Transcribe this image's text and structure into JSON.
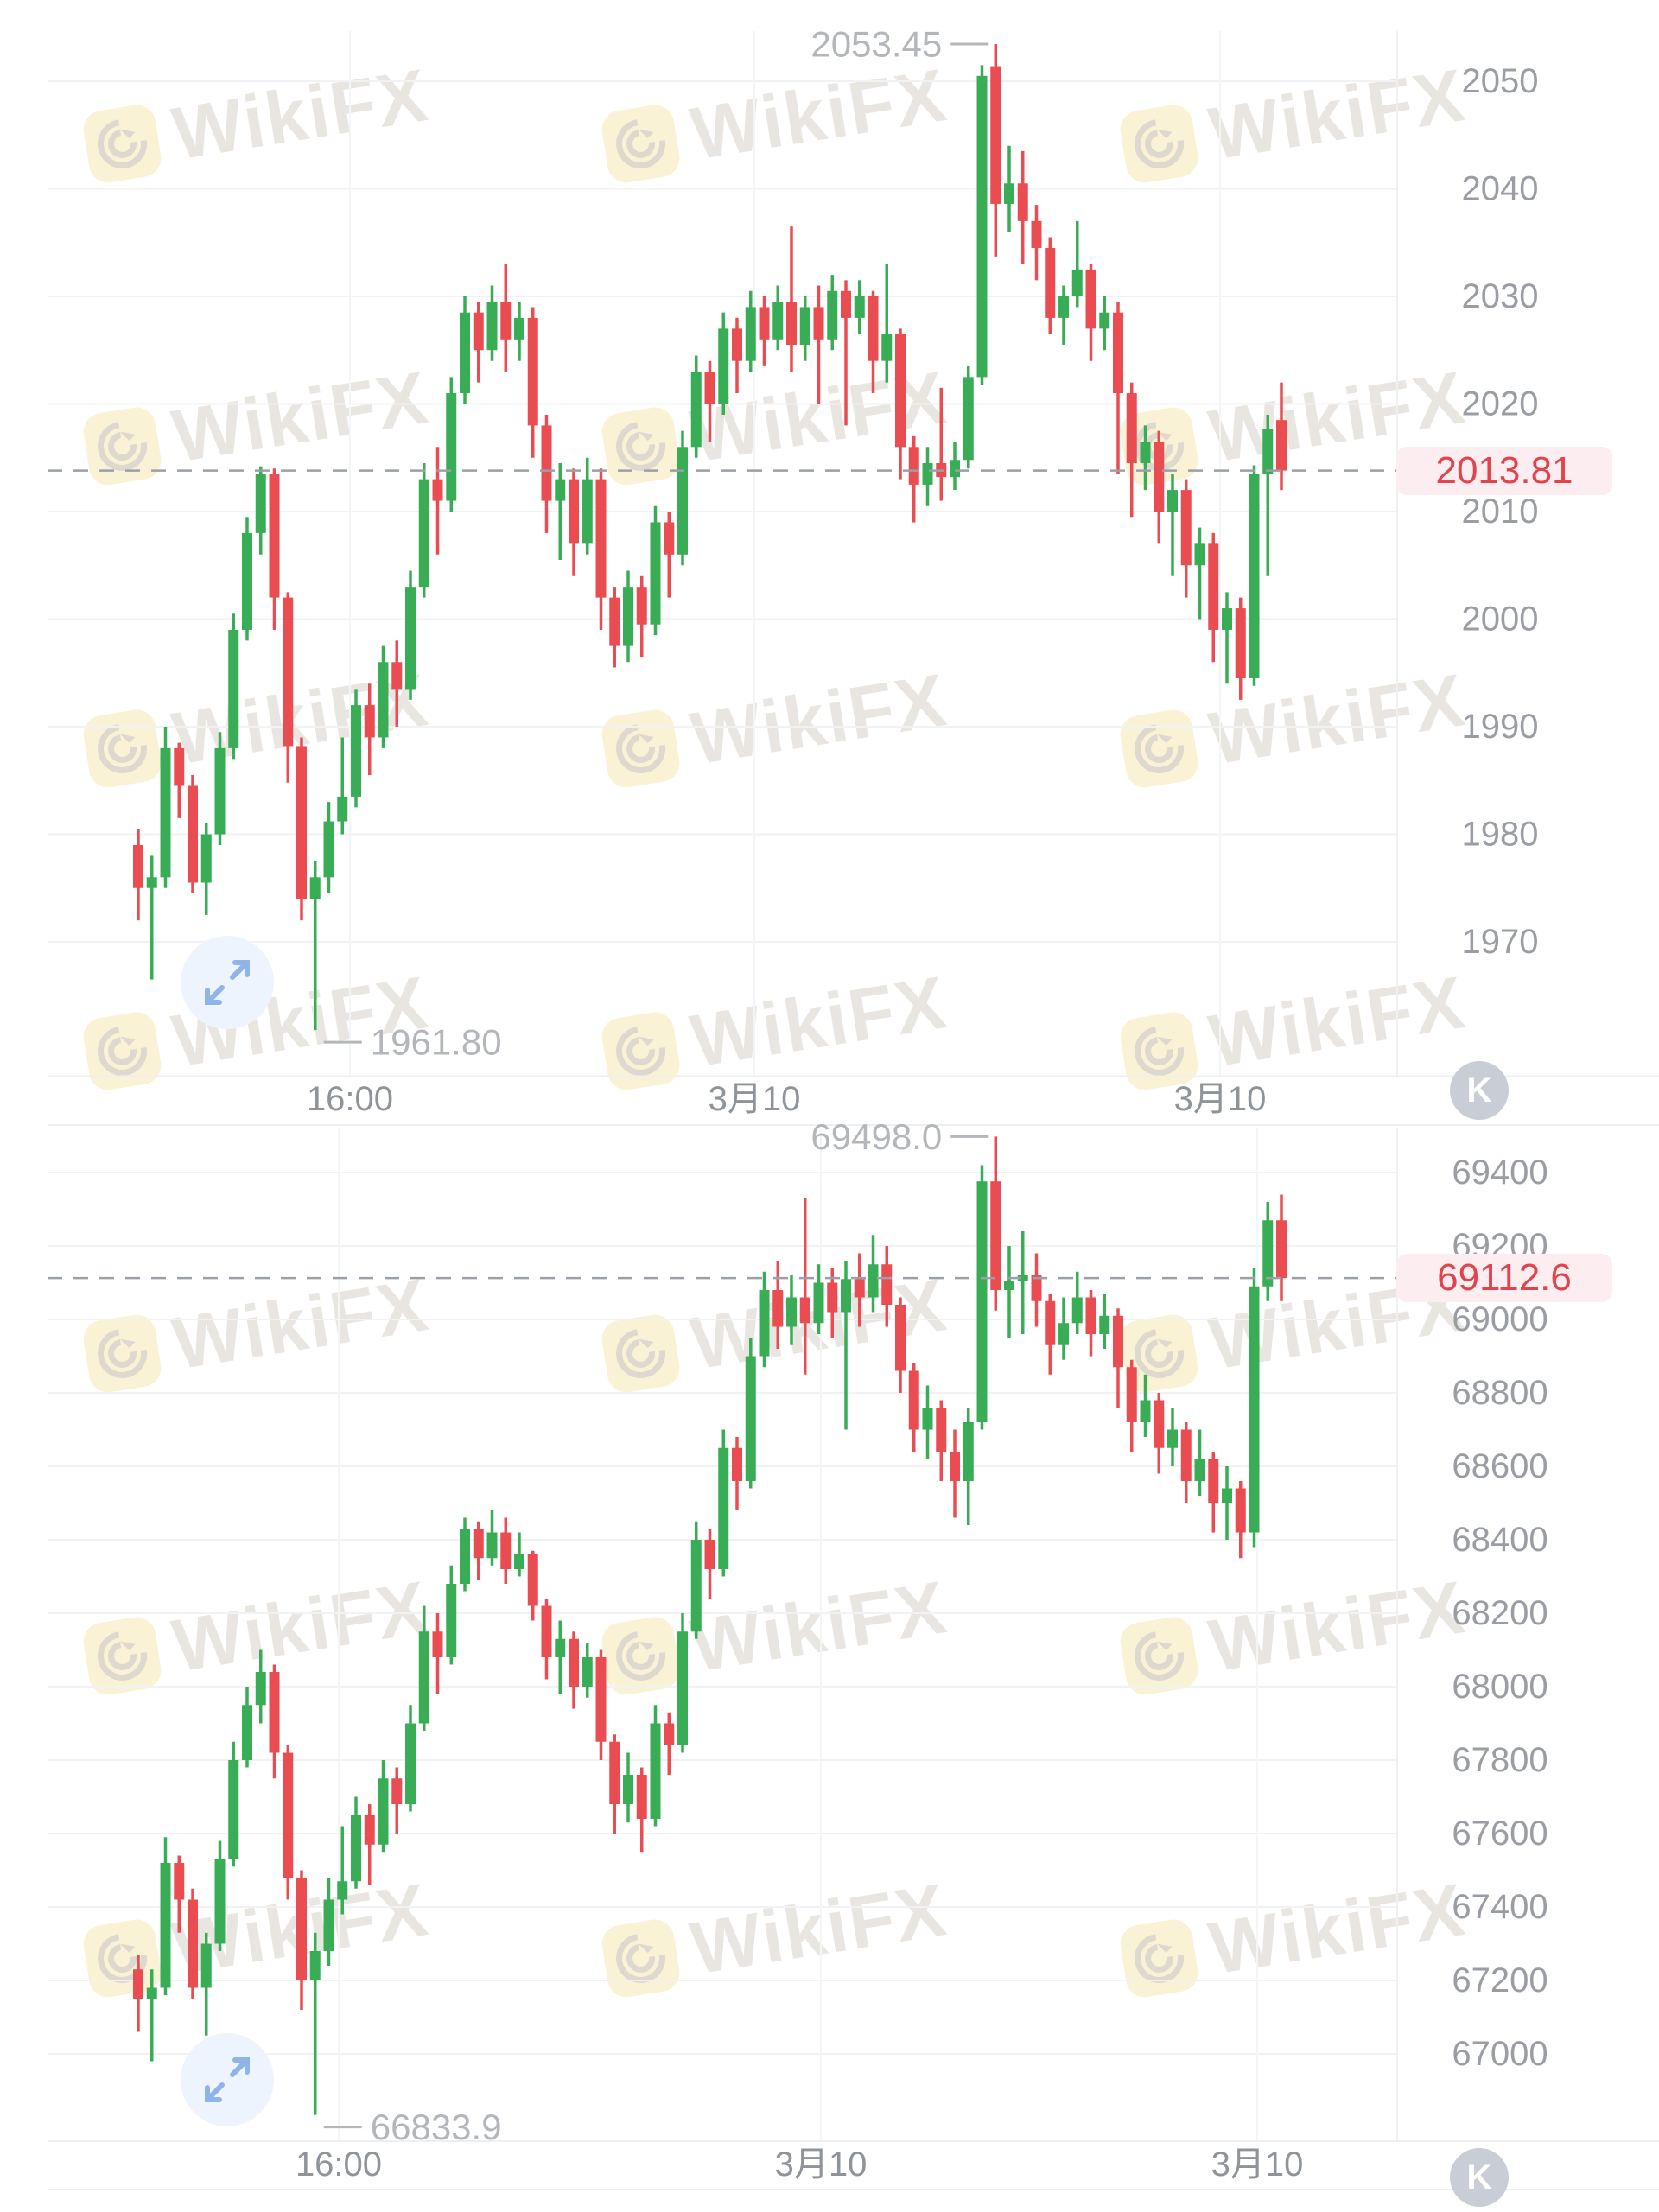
{
  "watermark": {
    "text": "WikiFX",
    "logo_icon": "wikifx-eagle-logo"
  },
  "interval_badge_label": "K",
  "colors": {
    "up": "#38ad56",
    "down": "#ea4d51",
    "current_price_text": "#e2444d",
    "current_price_bg": "#fceef0",
    "axis_text": "#9a9ea4",
    "marker_text": "#b3b6bb",
    "dashed_line": "#9aa0a6",
    "grid_line": "#f1f2f4",
    "fab_bg": "#eef4fd",
    "fab_arrow": "#8fb4ea",
    "k_badge_bg": "#c9ced6"
  },
  "chart_data": [
    {
      "type": "candlestick",
      "grid": true,
      "legend_position": "none",
      "y_ticks": [
        2050,
        2040,
        2030,
        2020,
        2010,
        2000,
        1990,
        1980,
        1970
      ],
      "ylim": [
        1961.8,
        2053.45
      ],
      "x_labels": [
        {
          "label": "16:00",
          "x": 405
        },
        {
          "label": "3月10",
          "x": 873
        },
        {
          "label": "3月10",
          "x": 1412
        }
      ],
      "high_marker": {
        "label": "2053.45",
        "value": 2053.45,
        "candle_index": 63
      },
      "low_marker": {
        "label": "1961.80",
        "value": 1961.8,
        "candle_index": 13
      },
      "current_price": {
        "label": "2013.81",
        "value": 2013.81
      },
      "candles": [
        [
          1979,
          1975,
          1972,
          1980.5
        ],
        [
          1975,
          1976,
          1966.5,
          1978
        ],
        [
          1976,
          1988,
          1975,
          1990
        ],
        [
          1988,
          1984.5,
          1981.5,
          1988.5
        ],
        [
          1984.5,
          1975.5,
          1974.5,
          1985.5
        ],
        [
          1975.5,
          1980,
          1972.5,
          1981
        ],
        [
          1980,
          1988,
          1979,
          1989.5
        ],
        [
          1988,
          1999,
          1987,
          2000.5
        ],
        [
          1999,
          2008,
          1998,
          2009.5
        ],
        [
          2008,
          2013.5,
          2006,
          2014.2
        ],
        [
          2013.5,
          2002,
          1999,
          2014
        ],
        [
          2002,
          1988.2,
          1984.8,
          2002.5
        ],
        [
          1988.2,
          1974,
          1972,
          1989
        ],
        [
          1974,
          1976,
          1961.8,
          1977.5
        ],
        [
          1976,
          1981.2,
          1974.5,
          1983
        ],
        [
          1981.2,
          1983.5,
          1980,
          1989
        ],
        [
          1983.5,
          1992,
          1982.5,
          1993.5
        ],
        [
          1992,
          1989,
          1985.5,
          1994
        ],
        [
          1989,
          1996,
          1988,
          1997.5
        ],
        [
          1996,
          1993.5,
          1990,
          1998
        ],
        [
          1993.5,
          2003,
          1992.5,
          2004.5
        ],
        [
          2003,
          2013,
          2002,
          2014.5
        ],
        [
          2013,
          2011,
          2006,
          2016
        ],
        [
          2011,
          2021,
          2010,
          2022.5
        ],
        [
          2021,
          2028.5,
          2020,
          2030
        ],
        [
          2028.5,
          2025,
          2022,
          2029.5
        ],
        [
          2025,
          2029.5,
          2024,
          2031
        ],
        [
          2029.5,
          2026,
          2023,
          2033
        ],
        [
          2026,
          2028,
          2024,
          2029.5
        ],
        [
          2028,
          2018,
          2015,
          2029
        ],
        [
          2018,
          2011,
          2008,
          2019
        ],
        [
          2011,
          2013,
          2005.5,
          2014.5
        ],
        [
          2013,
          2007,
          2004,
          2014
        ],
        [
          2007,
          2013,
          2006,
          2015
        ],
        [
          2013,
          2002,
          1999,
          2014
        ],
        [
          2002,
          1997.5,
          1995.5,
          2003
        ],
        [
          1997.5,
          2003,
          1996,
          2004.5
        ],
        [
          2003,
          1999.5,
          1996.5,
          2004
        ],
        [
          1999.5,
          2009,
          1998.5,
          2010.5
        ],
        [
          2009,
          2006,
          2002,
          2010
        ],
        [
          2006,
          2016,
          2005,
          2017.5
        ],
        [
          2016,
          2023,
          2015,
          2024.5
        ],
        [
          2023,
          2020,
          2016.5,
          2024
        ],
        [
          2020,
          2027,
          2019,
          2028.5
        ],
        [
          2027,
          2024,
          2021,
          2028
        ],
        [
          2024,
          2029,
          2023,
          2030.5
        ],
        [
          2029,
          2026,
          2023.5,
          2030
        ],
        [
          2026,
          2029.5,
          2025,
          2031
        ],
        [
          2029.5,
          2025.5,
          2023,
          2036.5
        ],
        [
          2025.5,
          2029,
          2024,
          2030
        ],
        [
          2029,
          2026,
          2020,
          2031
        ],
        [
          2026,
          2030.5,
          2025,
          2032
        ],
        [
          2030.5,
          2028,
          2018,
          2031.5
        ],
        [
          2028,
          2030,
          2026.5,
          2031.5
        ],
        [
          2030,
          2024,
          2021,
          2030.5
        ],
        [
          2024,
          2026.5,
          2022,
          2033
        ],
        [
          2026.5,
          2016,
          2013,
          2027
        ],
        [
          2016,
          2012.5,
          2009,
          2017
        ],
        [
          2012.5,
          2014.5,
          2010.5,
          2016
        ],
        [
          2014.5,
          2013.2,
          2011,
          2021.5
        ],
        [
          2013.2,
          2014.8,
          2012,
          2016.5
        ],
        [
          2014.8,
          2022.5,
          2014,
          2023.5
        ],
        [
          2022.5,
          2050.5,
          2021.8,
          2051.5
        ],
        [
          2051.4,
          2038.6,
          2033.7,
          2053.45
        ],
        [
          2038.6,
          2040.5,
          2036,
          2044
        ],
        [
          2040.5,
          2037,
          2033,
          2043.5
        ],
        [
          2037,
          2034.5,
          2031.5,
          2038.5
        ],
        [
          2034.5,
          2028,
          2026.5,
          2035.5
        ],
        [
          2028,
          2030,
          2025.5,
          2031
        ],
        [
          2030,
          2032.5,
          2029,
          2037
        ],
        [
          2032.5,
          2027,
          2024,
          2033
        ],
        [
          2027,
          2028.5,
          2025,
          2030
        ],
        [
          2028.5,
          2021,
          2013.5,
          2029.5
        ],
        [
          2021,
          2014.5,
          2009.5,
          2022
        ],
        [
          2014.5,
          2016.5,
          2012,
          2018
        ],
        [
          2016.5,
          2010,
          2007,
          2017.5
        ],
        [
          2010,
          2012,
          2004,
          2013.5
        ],
        [
          2012,
          2005,
          2002,
          2013
        ],
        [
          2005,
          2007,
          2000,
          2008.5
        ],
        [
          2007,
          1999,
          1996,
          2008
        ],
        [
          1999,
          2001,
          1994,
          2002.5
        ],
        [
          2001,
          1994.5,
          1992.5,
          2002
        ],
        [
          1994.5,
          2013.5,
          1993.8,
          2014.3
        ],
        [
          2013.5,
          2017.7,
          2004,
          2019
        ],
        [
          2018.5,
          2013.81,
          2012,
          2022
        ]
      ]
    },
    {
      "type": "candlestick",
      "grid": true,
      "legend_position": "none",
      "y_ticks": [
        69400,
        69200,
        69000,
        68800,
        68600,
        68400,
        68200,
        68000,
        67800,
        67600,
        67400,
        67200,
        67000
      ],
      "ylim": [
        66833.9,
        69498.0
      ],
      "x_labels": [
        {
          "label": "16:00",
          "x": 392
        },
        {
          "label": "3月10",
          "x": 950
        },
        {
          "label": "3月10",
          "x": 1455
        }
      ],
      "high_marker": {
        "label": "69498.0",
        "value": 69498.0,
        "candle_index": 63
      },
      "low_marker": {
        "label": "66833.9",
        "value": 66833.9,
        "candle_index": 13
      },
      "current_price": {
        "label": "69112.6",
        "value": 69112.6
      },
      "candles": [
        [
          67230,
          67150,
          67060,
          67270
        ],
        [
          67150,
          67180,
          66980,
          67230
        ],
        [
          67180,
          67520,
          67160,
          67590
        ],
        [
          67520,
          67420,
          67330,
          67540
        ],
        [
          67420,
          67180,
          67150,
          67450
        ],
        [
          67180,
          67300,
          67050,
          67330
        ],
        [
          67300,
          67530,
          67280,
          67580
        ],
        [
          67530,
          67800,
          67510,
          67850
        ],
        [
          67800,
          67950,
          67780,
          68000
        ],
        [
          67950,
          68040,
          67900,
          68100
        ],
        [
          68040,
          67820,
          67750,
          68060
        ],
        [
          67820,
          67480,
          67420,
          67840
        ],
        [
          67480,
          67200,
          67120,
          67500
        ],
        [
          67200,
          67280,
          66833.9,
          67330
        ],
        [
          67280,
          67420,
          67240,
          67480
        ],
        [
          67420,
          67470,
          67380,
          67620
        ],
        [
          67470,
          67650,
          67450,
          67700
        ],
        [
          67650,
          67570,
          67460,
          67680
        ],
        [
          67570,
          67750,
          67550,
          67800
        ],
        [
          67750,
          67680,
          67600,
          67780
        ],
        [
          67680,
          67900,
          67660,
          67950
        ],
        [
          67900,
          68150,
          67880,
          68220
        ],
        [
          68150,
          68080,
          67980,
          68200
        ],
        [
          68080,
          68280,
          68060,
          68330
        ],
        [
          68280,
          68430,
          68260,
          68460
        ],
        [
          68430,
          68350,
          68290,
          68450
        ],
        [
          68350,
          68420,
          68330,
          68480
        ],
        [
          68420,
          68320,
          68280,
          68460
        ],
        [
          68320,
          68360,
          68300,
          68420
        ],
        [
          68360,
          68220,
          68180,
          68370
        ],
        [
          68220,
          68080,
          68020,
          68240
        ],
        [
          68080,
          68130,
          67980,
          68180
        ],
        [
          68130,
          68000,
          67940,
          68150
        ],
        [
          68000,
          68080,
          67970,
          68120
        ],
        [
          68080,
          67850,
          67800,
          68100
        ],
        [
          67850,
          67680,
          67600,
          67870
        ],
        [
          67680,
          67760,
          67630,
          67820
        ],
        [
          67760,
          67640,
          67550,
          67780
        ],
        [
          67640,
          67900,
          67620,
          67950
        ],
        [
          67900,
          67840,
          67760,
          67930
        ],
        [
          67840,
          68150,
          67820,
          68200
        ],
        [
          68150,
          68400,
          68130,
          68450
        ],
        [
          68400,
          68320,
          68240,
          68430
        ],
        [
          68320,
          68650,
          68300,
          68700
        ],
        [
          68650,
          68560,
          68480,
          68680
        ],
        [
          68560,
          68900,
          68540,
          68950
        ],
        [
          68900,
          69080,
          68870,
          69130
        ],
        [
          69080,
          68980,
          68920,
          69160
        ],
        [
          68980,
          69060,
          68930,
          69120
        ],
        [
          69060,
          68990,
          68850,
          69330
        ],
        [
          68990,
          69100,
          68960,
          69150
        ],
        [
          69100,
          69020,
          68950,
          69140
        ],
        [
          69020,
          69110,
          68700,
          69160
        ],
        [
          69110,
          69060,
          68980,
          69180
        ],
        [
          69060,
          69150,
          69020,
          69230
        ],
        [
          69150,
          69040,
          68980,
          69200
        ],
        [
          69040,
          68860,
          68800,
          69060
        ],
        [
          68860,
          68700,
          68640,
          68880
        ],
        [
          68700,
          68760,
          68620,
          68820
        ],
        [
          68760,
          68640,
          68560,
          68780
        ],
        [
          68640,
          68560,
          68460,
          68700
        ],
        [
          68560,
          68720,
          68440,
          68760
        ],
        [
          68720,
          69376,
          68700,
          69420
        ],
        [
          69376,
          69080,
          69024,
          69498
        ],
        [
          69080,
          69105,
          68950,
          69200
        ],
        [
          69105,
          69120,
          68960,
          69240
        ],
        [
          69120,
          69050,
          68980,
          69180
        ],
        [
          69050,
          68930,
          68850,
          69070
        ],
        [
          68930,
          68990,
          68890,
          69060
        ],
        [
          68990,
          69060,
          68960,
          69130
        ],
        [
          69060,
          68960,
          68900,
          69080
        ],
        [
          68960,
          69010,
          68920,
          69070
        ],
        [
          69010,
          68870,
          68760,
          69030
        ],
        [
          68870,
          68720,
          68640,
          68890
        ],
        [
          68720,
          68780,
          68680,
          68850
        ],
        [
          68780,
          68650,
          68580,
          68800
        ],
        [
          68650,
          68700,
          68600,
          68760
        ],
        [
          68700,
          68560,
          68500,
          68720
        ],
        [
          68560,
          68620,
          68520,
          68700
        ],
        [
          68620,
          68500,
          68420,
          68640
        ],
        [
          68500,
          68540,
          68400,
          68600
        ],
        [
          68540,
          68420,
          68350,
          68560
        ],
        [
          68420,
          69090,
          68380,
          69140
        ],
        [
          69090,
          69270,
          69050,
          69320
        ],
        [
          69270,
          69112.6,
          69050,
          69340
        ]
      ]
    }
  ]
}
